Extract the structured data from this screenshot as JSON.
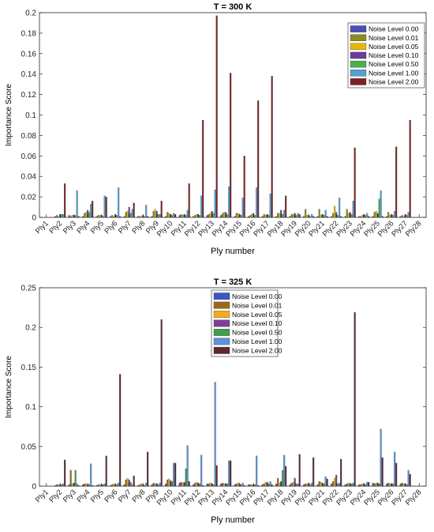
{
  "noise_levels": [
    "Noise Level 0.00",
    "Noise Level 0.01",
    "Noise Level 0.05",
    "Noise Level 0.10",
    "Noise Level 0.50",
    "Noise Level 1.00",
    "Noise Level 2.00"
  ],
  "chart_data": [
    {
      "type": "bar",
      "title": "T = 300 K",
      "xlabel": "Ply number",
      "ylabel": "Importance Score",
      "ylim": [
        0,
        0.2
      ],
      "yticks": [
        "0",
        "0.02",
        "0.04",
        "0.06",
        "0.08",
        "0.1",
        "0.12",
        "0.14",
        "0.16",
        "0.18",
        "0.2"
      ],
      "legend_position": "top-right",
      "categories": [
        "Ply1",
        "Ply2",
        "Ply3",
        "Ply4",
        "Ply5",
        "Ply6",
        "Ply7",
        "Ply8",
        "Ply9",
        "Ply10",
        "Ply11",
        "Ply12",
        "Ply13",
        "Ply14",
        "Ply15",
        "Ply16",
        "Ply17",
        "Ply18",
        "Ply19",
        "Ply20",
        "Ply21",
        "Ply22",
        "Ply23",
        "Ply24",
        "Ply25",
        "Ply26",
        "Ply27",
        "Ply28"
      ],
      "colors": [
        "#4b4fb5",
        "#8c8c1a",
        "#e5b80b",
        "#6a3d9a",
        "#4daf4a",
        "#56a0d3",
        "#7b2222"
      ],
      "series": [
        {
          "name": "Noise Level 0.00",
          "values": [
            0,
            0.001,
            0.002,
            0.001,
            0.001,
            0.001,
            0.001,
            0.001,
            0.001,
            0.001,
            0.002,
            0.001,
            0.002,
            0.002,
            0.001,
            0.001,
            0.001,
            0.001,
            0.001,
            0.001,
            0.001,
            0.001,
            0.001,
            0.001,
            0.001,
            0.001,
            0.001,
            0
          ]
        },
        {
          "name": "Noise Level 0.01",
          "values": [
            0,
            0.002,
            0.001,
            0.004,
            0.002,
            0.002,
            0.005,
            0.001,
            0.006,
            0.005,
            0.003,
            0.002,
            0.003,
            0.004,
            0.004,
            0.002,
            0.003,
            0.004,
            0.003,
            0.008,
            0.008,
            0.004,
            0.008,
            0.001,
            0.005,
            0.005,
            0.002,
            0
          ]
        },
        {
          "name": "Noise Level 0.05",
          "values": [
            0,
            0.001,
            0.002,
            0.005,
            0.002,
            0.001,
            0.006,
            0.001,
            0.008,
            0.004,
            0.002,
            0.003,
            0.004,
            0.005,
            0.004,
            0.003,
            0.002,
            0.004,
            0.003,
            0.002,
            0.002,
            0.011,
            0.004,
            0.002,
            0.006,
            0.002,
            0.001,
            0
          ]
        },
        {
          "name": "Noise Level 0.10",
          "values": [
            0,
            0.003,
            0.002,
            0.007,
            0.002,
            0.003,
            0.01,
            0.002,
            0.006,
            0.003,
            0.003,
            0.003,
            0.006,
            0.005,
            0.003,
            0.004,
            0.003,
            0.007,
            0.004,
            0.002,
            0.003,
            0.005,
            0.005,
            0.003,
            0.004,
            0.003,
            0.003,
            0
          ]
        },
        {
          "name": "Noise Level 0.50",
          "values": [
            0,
            0.003,
            0.002,
            0.005,
            0.001,
            0.002,
            0.004,
            0.001,
            0.003,
            0.002,
            0.002,
            0.002,
            0.004,
            0.003,
            0.002,
            0.002,
            0.002,
            0.003,
            0.002,
            0.001,
            0.002,
            0.002,
            0.003,
            0.002,
            0.018,
            0.002,
            0.002,
            0
          ]
        },
        {
          "name": "Noise Level 1.00",
          "values": [
            0,
            0.003,
            0.026,
            0.013,
            0.021,
            0.029,
            0.008,
            0.012,
            0.003,
            0.004,
            0.007,
            0.021,
            0.027,
            0.03,
            0.019,
            0.029,
            0.023,
            0.007,
            0.004,
            0.003,
            0.007,
            0.019,
            0.016,
            0.004,
            0.026,
            0.006,
            0.005,
            0
          ]
        },
        {
          "name": "Noise Level 2.00",
          "values": [
            0,
            0.033,
            0.001,
            0.016,
            0.02,
            0.001,
            0.014,
            0.001,
            0.016,
            0.003,
            0.033,
            0.095,
            0.197,
            0.141,
            0.06,
            0.114,
            0.138,
            0.021,
            0.003,
            0.001,
            0.001,
            0.001,
            0.068,
            0.001,
            0.001,
            0.069,
            0.095,
            0
          ]
        }
      ]
    },
    {
      "type": "bar",
      "title": "T = 325 K",
      "xlabel": "Ply number",
      "ylabel": "Importance Score",
      "ylim": [
        0,
        0.25
      ],
      "yticks": [
        "0",
        "0.05",
        "0.1",
        "0.15",
        "0.2",
        "0.25"
      ],
      "legend_position": "top-center",
      "categories": [
        "Ply1",
        "Ply2",
        "Ply3",
        "Ply4",
        "Ply5",
        "Ply6",
        "Ply7",
        "Ply8",
        "Ply9",
        "Ply10",
        "Ply11",
        "Ply12",
        "Ply13",
        "Ply14",
        "Ply15",
        "Ply16",
        "Ply17",
        "Ply18",
        "Ply19",
        "Ply20",
        "Ply21",
        "Ply22",
        "Ply23",
        "Ply24",
        "Ply25",
        "Ply26",
        "Ply27",
        "Ply28"
      ],
      "colors": [
        "#3a57c4",
        "#a0661a",
        "#f0ad1e",
        "#7e3f98",
        "#3fa04a",
        "#5b93d8",
        "#5b2b2b"
      ],
      "series": [
        {
          "name": "Noise Level 0.00",
          "values": [
            0,
            0.001,
            0.002,
            0.002,
            0.001,
            0.001,
            0.002,
            0.001,
            0.002,
            0.003,
            0.004,
            0.002,
            0.003,
            0.003,
            0.002,
            0.002,
            0.002,
            0.003,
            0.002,
            0.002,
            0.002,
            0.003,
            0.002,
            0.002,
            0.004,
            0.003,
            0.003,
            0
          ]
        },
        {
          "name": "Noise Level 0.01",
          "values": [
            0,
            0.002,
            0.02,
            0.003,
            0.002,
            0.002,
            0.008,
            0.002,
            0.004,
            0.008,
            0.005,
            0.004,
            0.003,
            0.004,
            0.003,
            0.002,
            0.003,
            0.01,
            0.004,
            0.003,
            0.006,
            0.006,
            0.003,
            0.002,
            0.003,
            0.004,
            0.004,
            0
          ]
        },
        {
          "name": "Noise Level 0.05",
          "values": [
            0,
            0.002,
            0.003,
            0.003,
            0.002,
            0.003,
            0.01,
            0.003,
            0.003,
            0.009,
            0.004,
            0.005,
            0.004,
            0.003,
            0.004,
            0.002,
            0.005,
            0.004,
            0.005,
            0.003,
            0.005,
            0.01,
            0.004,
            0.003,
            0.004,
            0.003,
            0.003,
            0
          ]
        },
        {
          "name": "Noise Level 0.10",
          "values": [
            0,
            0.002,
            0.004,
            0.002,
            0.002,
            0.002,
            0.008,
            0.002,
            0.003,
            0.007,
            0.005,
            0.004,
            0.003,
            0.003,
            0.003,
            0.002,
            0.005,
            0.006,
            0.01,
            0.004,
            0.004,
            0.014,
            0.003,
            0.003,
            0.004,
            0.003,
            0.003,
            0
          ]
        },
        {
          "name": "Noise Level 0.50",
          "values": [
            0,
            0.002,
            0.02,
            0.002,
            0.002,
            0.002,
            0.005,
            0.001,
            0.002,
            0.006,
            0.022,
            0.003,
            0.002,
            0.003,
            0.002,
            0.002,
            0.003,
            0.02,
            0.003,
            0.002,
            0.003,
            0.003,
            0.003,
            0.002,
            0.003,
            0.003,
            0.002,
            0
          ]
        },
        {
          "name": "Noise Level 1.00",
          "values": [
            0,
            0.003,
            0.003,
            0.028,
            0.003,
            0.004,
            0.002,
            0.004,
            0.004,
            0.029,
            0.051,
            0.039,
            0.131,
            0.032,
            0.004,
            0.038,
            0.006,
            0.039,
            0.003,
            0.004,
            0.012,
            0.004,
            0.004,
            0.005,
            0.072,
            0.043,
            0.02,
            0
          ]
        },
        {
          "name": "Noise Level 2.00",
          "values": [
            0,
            0.033,
            0.001,
            0.001,
            0.038,
            0.141,
            0.013,
            0.043,
            0.21,
            0.029,
            0.006,
            0.001,
            0.026,
            0.032,
            0.001,
            0.001,
            0.002,
            0.025,
            0.04,
            0.036,
            0.009,
            0.034,
            0.219,
            0.005,
            0.036,
            0.029,
            0.015,
            0
          ]
        }
      ]
    }
  ]
}
